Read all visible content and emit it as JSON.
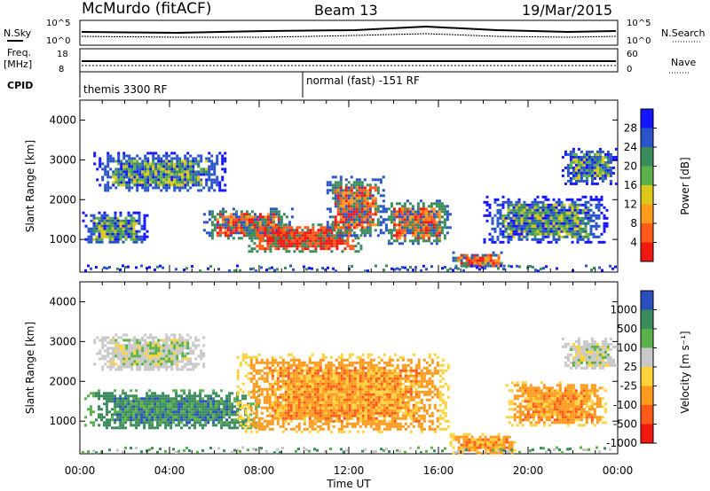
{
  "header": {
    "title": "McMurdo (fitACF)",
    "beam": "Beam 13",
    "date": "19/Mar/2015"
  },
  "strip_labels": {
    "nsky": "N.Sky",
    "nsky_top": "10^5",
    "nsky_bottom": "10^0",
    "nsearch": "N.Search",
    "nsearch_top": "10^5",
    "nsearch_bottom": "10^0",
    "freq": "Freq.",
    "freq_unit": "[MHz]",
    "freq_top": "18",
    "freq_bottom": "8",
    "nave": "Nave",
    "nave_top": "60",
    "nave_bottom": "0",
    "cpid": "CPID",
    "cpid_a": "themis 3300 RF",
    "cpid_b": "normal (fast) -151 RF"
  },
  "chart_data": [
    {
      "type": "heatmap",
      "name": "power-panel",
      "ylabel": "Slant Range [km]",
      "xlabel": "",
      "x_ticks": [
        "00:00",
        "04:00",
        "08:00",
        "12:00",
        "16:00",
        "20:00",
        "00:00"
      ],
      "y_ticks": [
        "1000",
        "2000",
        "3000",
        "4000"
      ],
      "ylim": [
        180,
        4500
      ],
      "xlim": [
        0,
        24
      ],
      "colorbar": {
        "label": "Power [dB]",
        "ticks": [
          "4",
          "8",
          "12",
          "16",
          "20",
          "24",
          "28"
        ],
        "colors": [
          "#1515ff",
          "#2a55c8",
          "#3a8c5c",
          "#5ab04a",
          "#dcc81a",
          "#ff9a1c",
          "#ff5a18",
          "#f01810"
        ]
      },
      "bands": [
        {
          "t0": 0.1,
          "t1": 3.0,
          "r0": 900,
          "r1": 1700,
          "level": "mid"
        },
        {
          "t0": 0.6,
          "t1": 6.5,
          "r0": 2200,
          "r1": 3200,
          "level": "mid"
        },
        {
          "t0": 5.5,
          "t1": 9.5,
          "r0": 1000,
          "r1": 1800,
          "level": "high"
        },
        {
          "t0": 7.5,
          "t1": 12.5,
          "r0": 700,
          "r1": 1400,
          "level": "max"
        },
        {
          "t0": 11.0,
          "t1": 13.5,
          "r0": 1100,
          "r1": 2600,
          "level": "high"
        },
        {
          "t0": 13.5,
          "t1": 16.5,
          "r0": 900,
          "r1": 2000,
          "level": "high"
        },
        {
          "t0": 16.5,
          "t1": 19.0,
          "r0": 300,
          "r1": 700,
          "level": "high"
        },
        {
          "t0": 18.0,
          "t1": 23.5,
          "r0": 900,
          "r1": 2100,
          "level": "mid"
        },
        {
          "t0": 21.5,
          "t1": 23.9,
          "r0": 2400,
          "r1": 3300,
          "level": "mid"
        }
      ]
    },
    {
      "type": "heatmap",
      "name": "velocity-panel",
      "ylabel": "Slant Range [km]",
      "xlabel": "Time UT",
      "x_ticks": [
        "00:00",
        "04:00",
        "08:00",
        "12:00",
        "16:00",
        "20:00",
        "00:00"
      ],
      "y_ticks": [
        "1000",
        "2000",
        "3000",
        "4000"
      ],
      "ylim": [
        180,
        4500
      ],
      "xlim": [
        0,
        24
      ],
      "colorbar": {
        "label": "Velocity [m s⁻¹]",
        "ticks": [
          "1000",
          "500",
          "100",
          "25",
          "-25",
          "-100",
          "-500",
          "-1000"
        ],
        "colors": [
          "#2c4fc0",
          "#3a8c5c",
          "#5ab04a",
          "#c8c8c8",
          "#ffd23a",
          "#ff9a1c",
          "#ff5a18",
          "#f01810"
        ]
      },
      "bands": [
        {
          "t0": 0.2,
          "t1": 8.0,
          "r0": 800,
          "r1": 1800,
          "level": "green"
        },
        {
          "t0": 0.6,
          "t1": 5.5,
          "r0": 2300,
          "r1": 3200,
          "level": "gray"
        },
        {
          "t0": 7.0,
          "t1": 16.5,
          "r0": 700,
          "r1": 2700,
          "level": "orange"
        },
        {
          "t0": 16.5,
          "t1": 19.5,
          "r0": 200,
          "r1": 700,
          "level": "orange"
        },
        {
          "t0": 19.0,
          "t1": 23.5,
          "r0": 900,
          "r1": 2000,
          "level": "orange"
        },
        {
          "t0": 21.5,
          "t1": 23.9,
          "r0": 2300,
          "r1": 3100,
          "level": "gray"
        }
      ]
    }
  ]
}
